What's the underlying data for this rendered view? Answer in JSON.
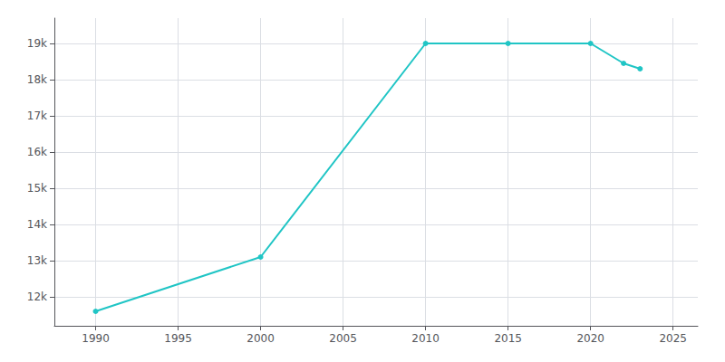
{
  "chart_data": {
    "type": "line",
    "x": [
      1990,
      2000,
      2010,
      2015,
      2020,
      2022,
      2023
    ],
    "values": [
      11600,
      13100,
      19000,
      19000,
      19000,
      18450,
      18300
    ],
    "color": "#20C5C5",
    "marker": "circle",
    "xlim": [
      1987.5,
      2026.5
    ],
    "xticks": [
      1990,
      1995,
      2000,
      2005,
      2010,
      2015,
      2020,
      2025
    ],
    "ylim": [
      11200,
      19700
    ],
    "yticks": [
      {
        "value": 12000,
        "label": "12k"
      },
      {
        "value": 13000,
        "label": "13k"
      },
      {
        "value": 14000,
        "label": "14k"
      },
      {
        "value": 15000,
        "label": "15k"
      },
      {
        "value": 16000,
        "label": "16k"
      },
      {
        "value": 17000,
        "label": "17k"
      },
      {
        "value": 18000,
        "label": "18k"
      },
      {
        "value": 19000,
        "label": "19k"
      }
    ],
    "grid": true
  }
}
